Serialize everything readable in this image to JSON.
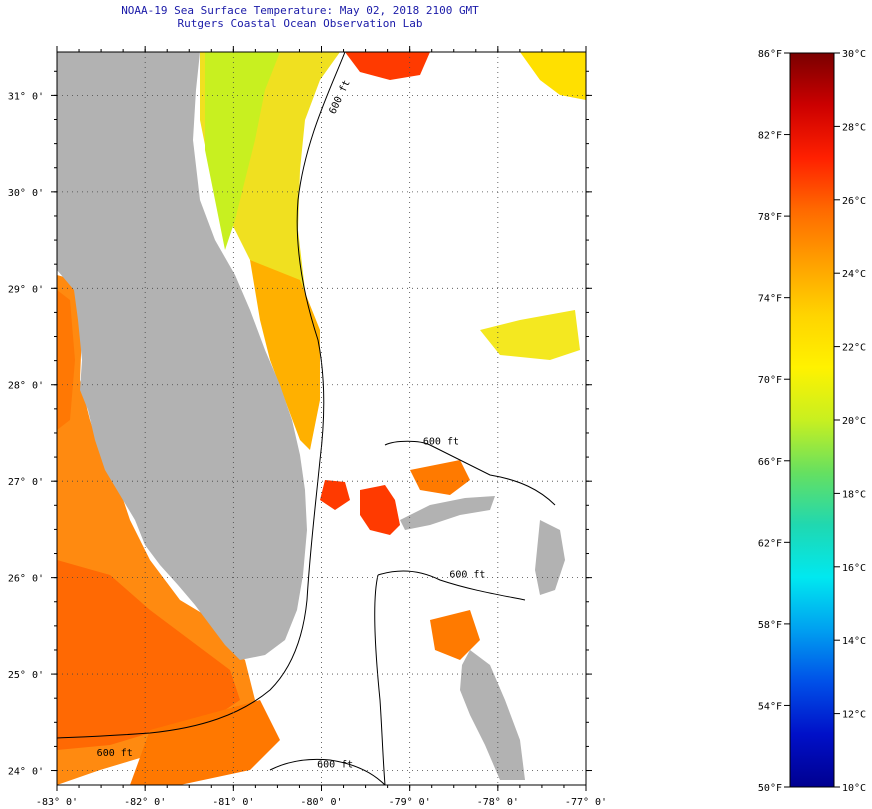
{
  "title": {
    "line1": "NOAA-19 Sea Surface Temperature:  May 02, 2018 2100 GMT",
    "line2": "Rutgers Coastal Ocean Observation Lab"
  },
  "map": {
    "lon_range": [
      -83,
      -77
    ],
    "lat_range": [
      23.85,
      31.45
    ],
    "lon_ticks": [
      {
        "lon": -83,
        "label": "-83° 0'"
      },
      {
        "lon": -82,
        "label": "-82° 0'"
      },
      {
        "lon": -81,
        "label": "-81° 0'"
      },
      {
        "lon": -80,
        "label": "-80° 0'"
      },
      {
        "lon": -79,
        "label": "-79° 0'"
      },
      {
        "lon": -78,
        "label": "-78° 0'"
      },
      {
        "lon": -77,
        "label": "-77° 0'"
      }
    ],
    "lat_ticks": [
      {
        "lat": 31,
        "label": "31° 0'"
      },
      {
        "lat": 30,
        "label": "30° 0'"
      },
      {
        "lat": 29,
        "label": "29° 0'"
      },
      {
        "lat": 28,
        "label": "28° 0'"
      },
      {
        "lat": 27,
        "label": "27° 0'"
      },
      {
        "lat": 26,
        "label": "26° 0'"
      },
      {
        "lat": 25,
        "label": "25° 0'"
      },
      {
        "lat": 24,
        "label": "24° 0'"
      }
    ],
    "contour_labels": [
      {
        "text": "600 ft",
        "lon": -79.85,
        "lat": 30.8,
        "rotate": -65
      },
      {
        "text": "600 ft",
        "lon": -78.85,
        "lat": 27.38,
        "rotate": 0
      },
      {
        "text": "600 ft",
        "lon": -78.55,
        "lat": 26.0,
        "rotate": 0
      },
      {
        "text": "600 ft",
        "lon": -82.55,
        "lat": 24.15,
        "rotate": 0
      },
      {
        "text": "600 ft",
        "lon": -80.05,
        "lat": 24.03,
        "rotate": 0
      }
    ],
    "colors": {
      "land": "#b2b2b2",
      "grid": "#444444"
    }
  },
  "colorbar": {
    "f_labels": [
      "86°F",
      "82°F",
      "78°F",
      "74°F",
      "70°F",
      "66°F",
      "62°F",
      "58°F",
      "54°F",
      "50°F"
    ],
    "c_labels": [
      "30°C",
      "28°C",
      "26°C",
      "24°C",
      "22°C",
      "20°C",
      "18°C",
      "16°C",
      "14°C",
      "12°C",
      "10°C"
    ],
    "f_range": [
      50,
      86
    ],
    "c_range": [
      10,
      30
    ],
    "colors_top_to_bottom": [
      "#7a0000",
      "#cc0000",
      "#ff2000",
      "#ff6a00",
      "#ffa000",
      "#ffd400",
      "#fff200",
      "#c8f020",
      "#66e060",
      "#20d8b0",
      "#00e8f0",
      "#00a0f0",
      "#0050e8",
      "#0010c8",
      "#000090"
    ]
  }
}
